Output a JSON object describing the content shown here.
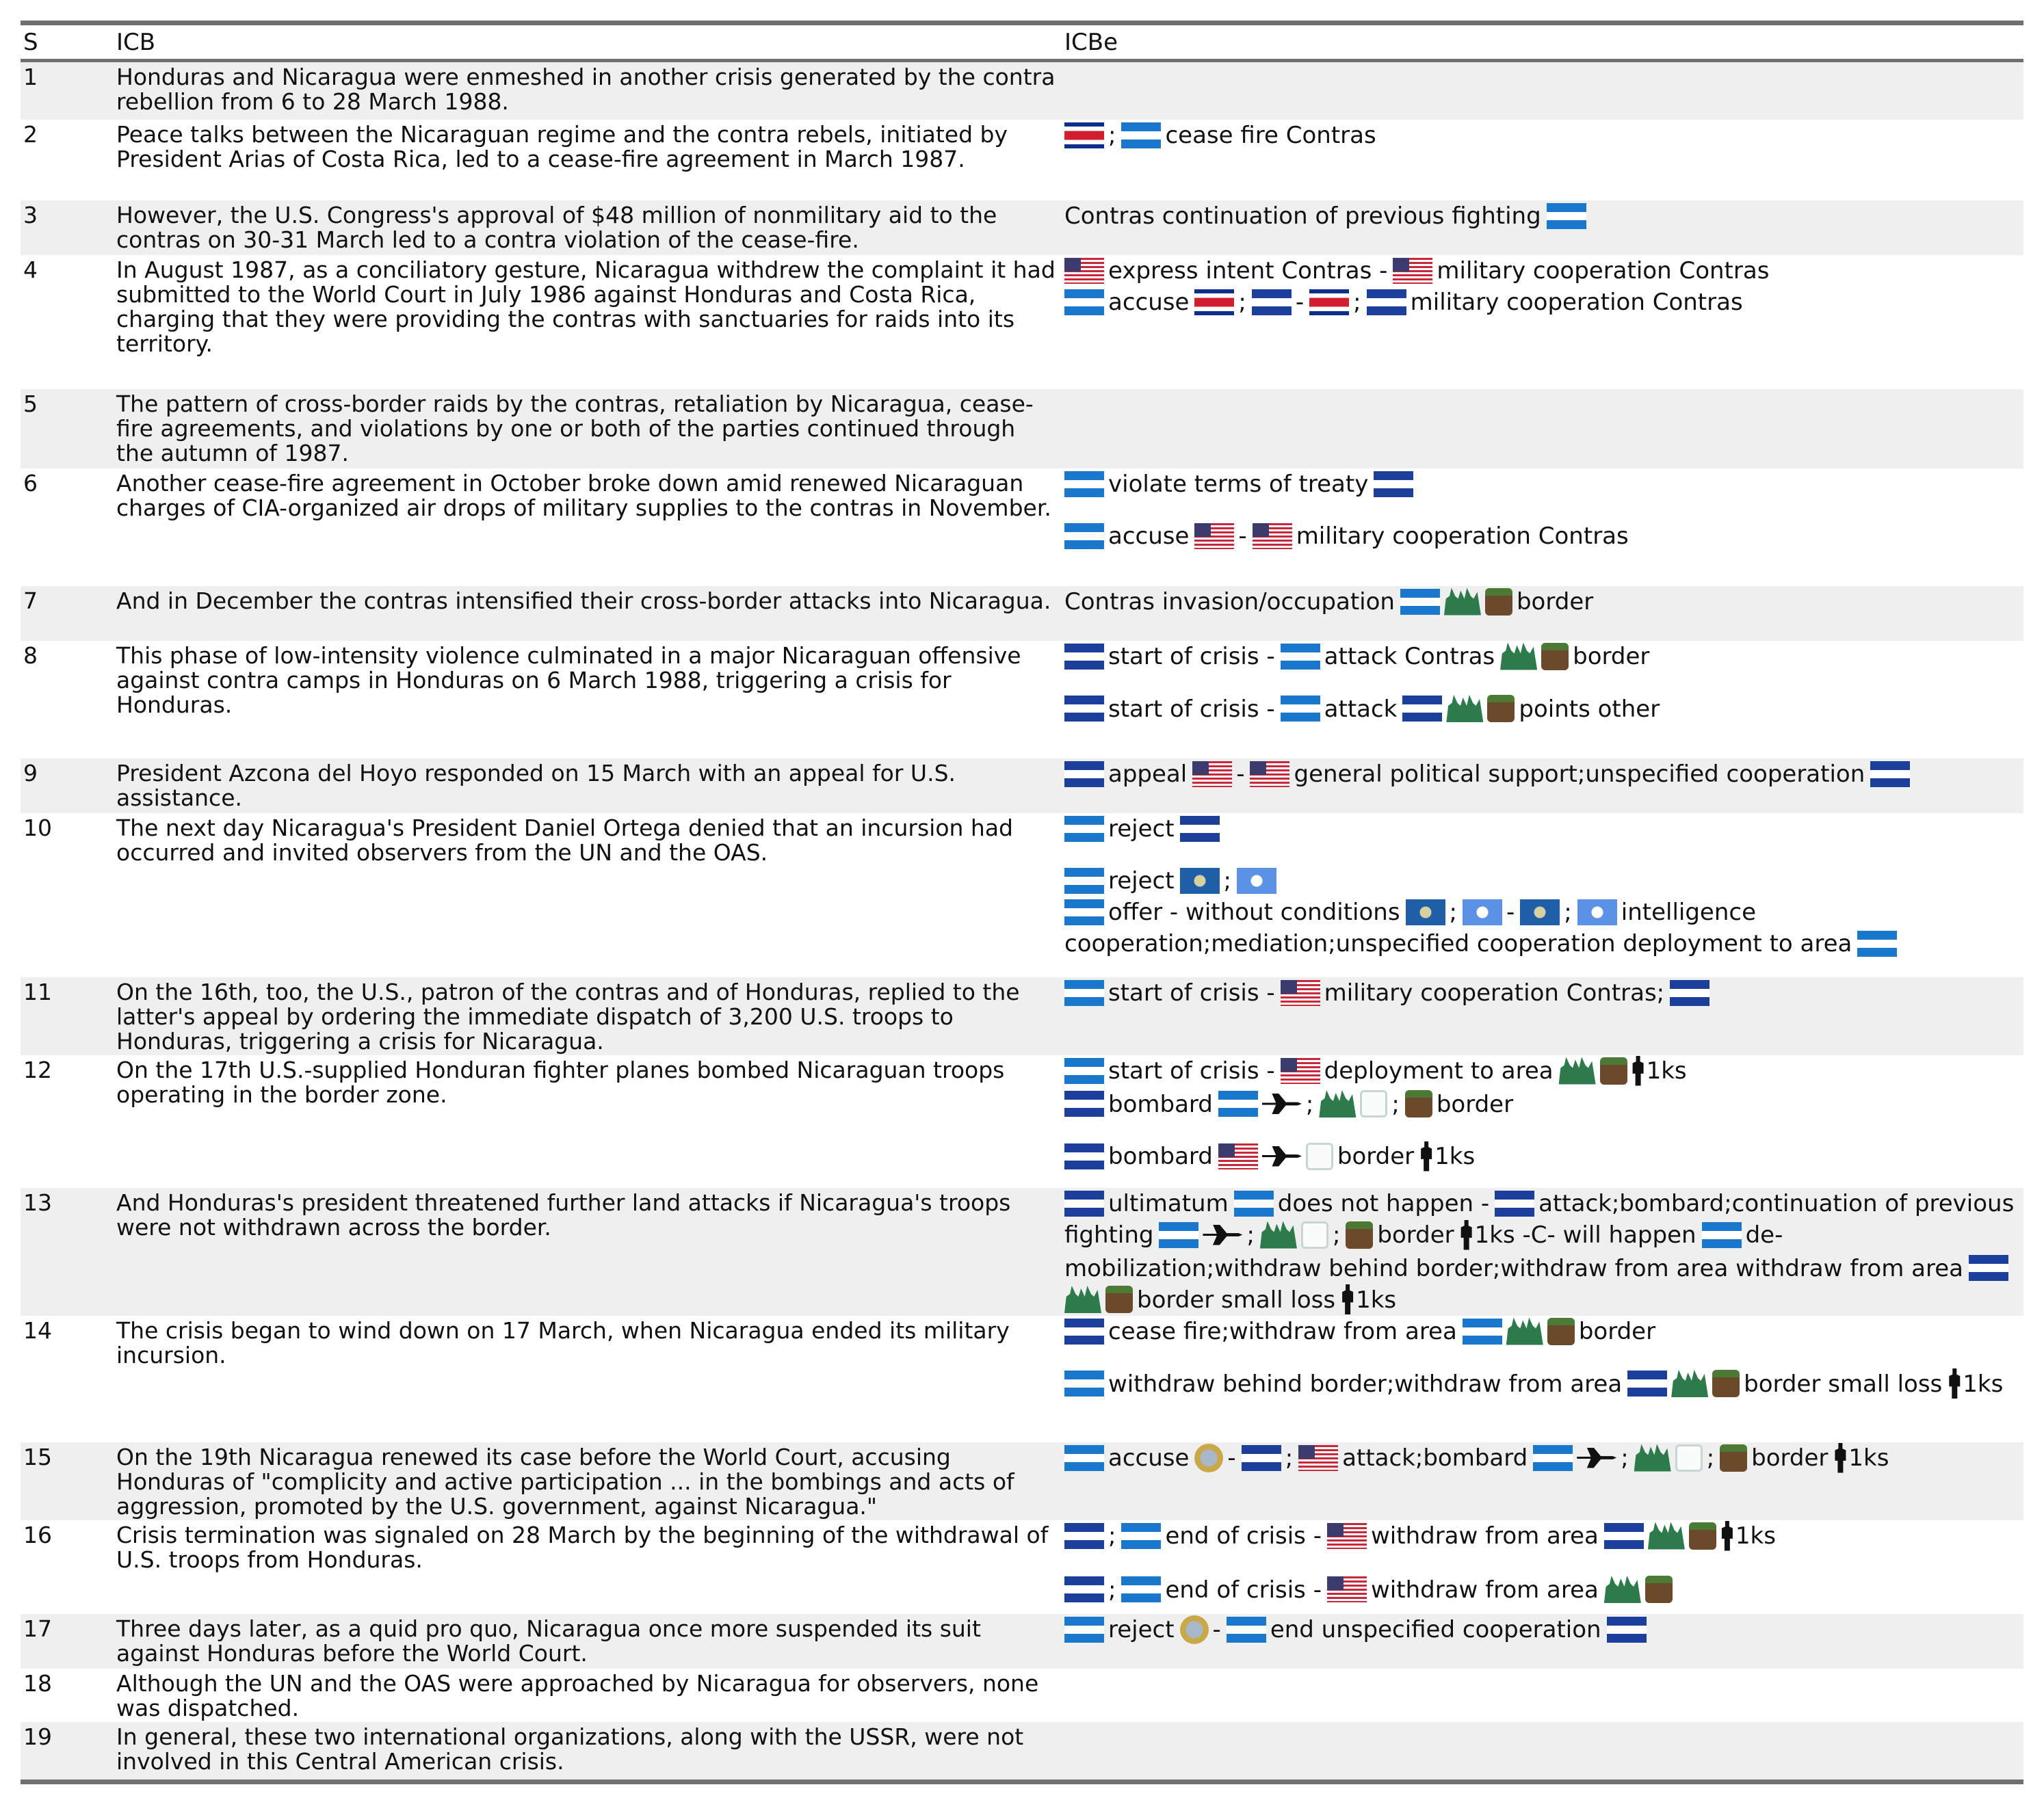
{
  "table": {
    "columns": [
      "S",
      "ICB",
      "ICBe"
    ],
    "rows": [
      {
        "s": "1",
        "icb": "Honduras and Nicaragua were enmeshed in another crisis generated by the contra rebellion from 6 to 28 March 1988.",
        "icbe": []
      },
      {
        "s": "2",
        "icb": "Peace talks between the Nicaraguan regime and the contra rebels, initiated by President Arias of Costa Rica, led to a cease-fire agreement in March 1987.",
        "icbe": [
          ";",
          "cease fire Contras"
        ]
      },
      {
        "s": "3",
        "icb": "However, the U.S. Congress's approval of $48 million of nonmilitary aid to the contras on 30-31 March led to a contra violation of the cease-fire.",
        "icbe": [
          "Contras continuation of previous fighting"
        ]
      },
      {
        "s": "4",
        "icb": "In August 1987, as a conciliatory gesture, Nicaragua withdrew the complaint it had submitted to the World Court in July 1986 against Honduras and Costa Rica, charging that they were providing the contras with sanctuaries for raids into its territory.",
        "icbe": [
          "express intent Contras -",
          "military cooperation Contras",
          "accuse",
          ";",
          "-",
          ";",
          "military cooperation Contras"
        ]
      },
      {
        "s": "5",
        "icb": "The pattern of cross-border raids by the contras, retaliation by Nicaragua, cease-fire agreements, and violations by one or both of the parties continued through the autumn of 1987.",
        "icbe": []
      },
      {
        "s": "6",
        "icb": "Another cease-fire agreement in October broke down amid renewed Nicaraguan charges of CIA-organized air drops of military supplies to the contras in November.",
        "icbe": [
          "violate terms of treaty",
          "accuse",
          "-",
          "military cooperation Contras"
        ]
      },
      {
        "s": "7",
        "icb": "And in December the contras intensified their cross-border attacks into Nicaragua.",
        "icbe": [
          "Contras invasion/occupation",
          "border"
        ]
      },
      {
        "s": "8",
        "icb": "This phase of low-intensity violence culminated in a major Nicaraguan offensive against contra camps in Honduras on 6 March 1988, triggering a crisis for Honduras.",
        "icbe": [
          "start of crisis -",
          "attack Contras",
          "border",
          "start of crisis -",
          "attack",
          "points other"
        ]
      },
      {
        "s": "9",
        "icb": "President Azcona del Hoyo responded on 15 March with an appeal for U.S. assistance.",
        "icbe": [
          "appeal",
          "-",
          "general political support;unspecified cooperation"
        ]
      },
      {
        "s": "10",
        "icb": "The next day Nicaragua's President Daniel Ortega denied that an incursion had occurred and invited observers from the UN and the OAS.",
        "icbe": [
          "reject",
          "reject",
          ";",
          "offer - without conditions",
          ";",
          "-",
          ";",
          "intelligence cooperation;mediation;unspecified cooperation deployment to area"
        ]
      },
      {
        "s": "11",
        "icb": "On the 16th, too, the U.S., patron of the contras and of Honduras, replied to the latter's appeal by ordering the immediate dispatch of 3,200 U.S. troops to Honduras, triggering a crisis for Nicaragua.",
        "icbe": [
          "start of crisis -",
          "military cooperation Contras;"
        ]
      },
      {
        "s": "12",
        "icb": "On the 17th U.S.-supplied Honduran fighter planes bombed Nicaraguan troops operating in the border zone.",
        "icbe": [
          "start of crisis -",
          "deployment to area",
          "1ks",
          "bombard",
          ";",
          ";",
          "border",
          "bombard",
          "border",
          "1ks"
        ]
      },
      {
        "s": "13",
        "icb": "And Honduras's president threatened further land attacks if Nicaragua's troops were not withdrawn across the border.",
        "icbe": [
          "ultimatum",
          "does not happen -",
          "attack;bombard;continuation of previous fighting",
          ";",
          ";",
          "border",
          "1ks -C- will happen",
          "de-mobilization;withdraw behind border;withdraw from area withdraw from area",
          "border small loss",
          "1ks"
        ]
      },
      {
        "s": "14",
        "icb": "The crisis began to wind down on 17 March, when Nicaragua ended its military incursion.",
        "icbe": [
          "cease fire;withdraw from area",
          "border",
          "withdraw behind border;withdraw from area",
          "border small loss",
          "1ks"
        ]
      },
      {
        "s": "15",
        "icb": "On the 19th Nicaragua renewed its case before the World Court, accusing Honduras of \"complicity and active participation ... in the bombings and acts of aggression, promoted by the U.S. government, against Nicaragua.\"",
        "icbe": [
          "accuse",
          "-",
          ";",
          "attack;bombard",
          ";",
          ";",
          "border",
          "1ks"
        ]
      },
      {
        "s": "16",
        "icb": "Crisis termination was signaled on 28 March by the beginning of the withdrawal of U.S. troops from Honduras.",
        "icbe": [
          ";",
          "end of crisis -",
          "withdraw from area",
          "1ks",
          ";",
          "end of crisis -",
          "withdraw from area"
        ]
      },
      {
        "s": "17",
        "icb": "Three days later, as a quid pro quo, Nicaragua once more suspended its suit against Honduras before the World Court.",
        "icbe": [
          "reject",
          "-",
          "end unspecified cooperation"
        ]
      },
      {
        "s": "18",
        "icb": "Although the UN and the OAS were approached by Nicaragua for observers, none was dispatched.",
        "icbe": []
      },
      {
        "s": "19",
        "icb": "In general, these two international organizations, along with the USSR, were not involved in this Central American crisis.",
        "icbe": []
      }
    ]
  }
}
